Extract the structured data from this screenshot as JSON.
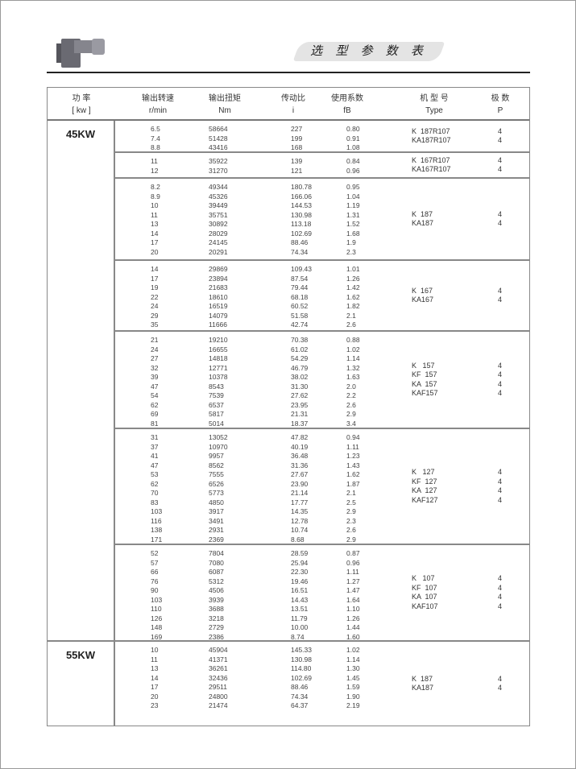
{
  "header": {
    "title": "选 型 参 数 表"
  },
  "columns": [
    {
      "cn": "功  率",
      "unit": "[ kw ]"
    },
    {
      "cn": "输出转速",
      "unit": "r/min"
    },
    {
      "cn": "输出扭矩",
      "unit": "Nm"
    },
    {
      "cn": "传动比",
      "unit": "i"
    },
    {
      "cn": "使用系数",
      "unit": "fB"
    },
    {
      "cn": "机 型 号",
      "unit": "Type"
    },
    {
      "cn": "极  数",
      "unit": "P"
    }
  ],
  "blocks": [
    {
      "power": "45KW",
      "groups": [
        {
          "rows": [
            [
              "6.5",
              "58664",
              "227",
              "0.80"
            ],
            [
              "7.4",
              "51428",
              "199",
              "0.91"
            ],
            [
              "8.8",
              "43416",
              "168",
              "1.08"
            ]
          ],
          "types": [
            [
              "K  187R107",
              "4"
            ],
            [
              "KA187R107",
              "4"
            ]
          ]
        },
        {
          "rows": [
            [
              "11",
              "35922",
              "139",
              "0.84"
            ],
            [
              "12",
              "31270",
              "121",
              "0.96"
            ]
          ],
          "types": [
            [
              "K  167R107",
              "4"
            ],
            [
              "KA167R107",
              "4"
            ]
          ]
        },
        {
          "rows": [
            [
              "8.2",
              "49344",
              "180.78",
              "0.95"
            ],
            [
              "8.9",
              "45326",
              "166.06",
              "1.04"
            ],
            [
              "10",
              "39449",
              "144.53",
              "1.19"
            ],
            [
              "11",
              "35751",
              "130.98",
              "1.31"
            ],
            [
              "13",
              "30892",
              "113.18",
              "1.52"
            ],
            [
              "14",
              "28029",
              "102.69",
              "1.68"
            ],
            [
              "17",
              "24145",
              "88.46",
              "1.9"
            ],
            [
              "20",
              "20291",
              "74.34",
              "2.3"
            ]
          ],
          "types": [
            [
              "K  187",
              "4"
            ],
            [
              "KA187",
              "4"
            ]
          ]
        },
        {
          "rows": [
            [
              "14",
              "29869",
              "109.43",
              "1.01"
            ],
            [
              "17",
              "23894",
              "87.54",
              "1.26"
            ],
            [
              "19",
              "21683",
              "79.44",
              "1.42"
            ],
            [
              "22",
              "18610",
              "68.18",
              "1.62"
            ],
            [
              "24",
              "16519",
              "60.52",
              "1.82"
            ],
            [
              "29",
              "14079",
              "51.58",
              "2.1"
            ],
            [
              "35",
              "11666",
              "42.74",
              "2.6"
            ]
          ],
          "types": [
            [
              "K  167",
              "4"
            ],
            [
              "KA167",
              "4"
            ]
          ]
        },
        {
          "rows": [
            [
              "21",
              "19210",
              "70.38",
              "0.88"
            ],
            [
              "24",
              "16655",
              "61.02",
              "1.02"
            ],
            [
              "27",
              "14818",
              "54.29",
              "1.14"
            ],
            [
              "32",
              "12771",
              "46.79",
              "1.32"
            ],
            [
              "39",
              "10378",
              "38.02",
              "1.63"
            ],
            [
              "47",
              "8543",
              "31.30",
              "2.0"
            ],
            [
              "54",
              "7539",
              "27.62",
              "2.2"
            ],
            [
              "62",
              "6537",
              "23.95",
              "2.6"
            ],
            [
              "69",
              "5817",
              "21.31",
              "2.9"
            ],
            [
              "81",
              "5014",
              "18.37",
              "3.4"
            ]
          ],
          "types": [
            [
              "K   157",
              "4"
            ],
            [
              "KF  157",
              "4"
            ],
            [
              "KA  157",
              "4"
            ],
            [
              "KAF157",
              "4"
            ]
          ]
        },
        {
          "rows": [
            [
              "31",
              "13052",
              "47.82",
              "0.94"
            ],
            [
              "37",
              "10970",
              "40.19",
              "1.11"
            ],
            [
              "41",
              "9957",
              "36.48",
              "1.23"
            ],
            [
              "47",
              "8562",
              "31.36",
              "1.43"
            ],
            [
              "53",
              "7555",
              "27.67",
              "1.62"
            ],
            [
              "62",
              "6526",
              "23.90",
              "1.87"
            ],
            [
              "70",
              "5773",
              "21.14",
              "2.1"
            ],
            [
              "83",
              "4850",
              "17.77",
              "2.5"
            ],
            [
              "103",
              "3917",
              "14.35",
              "2.9"
            ],
            [
              "116",
              "3491",
              "12.78",
              "2.3"
            ],
            [
              "138",
              "2931",
              "10.74",
              "2.6"
            ],
            [
              "171",
              "2369",
              "8.68",
              "2.9"
            ]
          ],
          "types": [
            [
              "K   127",
              "4"
            ],
            [
              "KF  127",
              "4"
            ],
            [
              "KA  127",
              "4"
            ],
            [
              "KAF127",
              "4"
            ]
          ]
        },
        {
          "rows": [
            [
              "52",
              "7804",
              "28.59",
              "0.87"
            ],
            [
              "57",
              "7080",
              "25.94",
              "0.96"
            ],
            [
              "66",
              "6087",
              "22.30",
              "1.11"
            ],
            [
              "76",
              "5312",
              "19.46",
              "1.27"
            ],
            [
              "90",
              "4506",
              "16.51",
              "1.47"
            ],
            [
              "103",
              "3939",
              "14.43",
              "1.64"
            ],
            [
              "110",
              "3688",
              "13.51",
              "1.10"
            ],
            [
              "126",
              "3218",
              "11.79",
              "1.26"
            ],
            [
              "148",
              "2729",
              "10.00",
              "1.44"
            ],
            [
              "169",
              "2386",
              "8.74",
              "1.60"
            ]
          ],
          "types": [
            [
              "K   107",
              "4"
            ],
            [
              "KF  107",
              "4"
            ],
            [
              "KA  107",
              "4"
            ],
            [
              "KAF107",
              "4"
            ]
          ]
        }
      ]
    },
    {
      "power": "55KW",
      "groups": [
        {
          "rows": [
            [
              "10",
              "45904",
              "145.33",
              "1.02"
            ],
            [
              "11",
              "41371",
              "130.98",
              "1.14"
            ],
            [
              "13",
              "36261",
              "114.80",
              "1.30"
            ],
            [
              "14",
              "32436",
              "102.69",
              "1.45"
            ],
            [
              "17",
              "29511",
              "88.46",
              "1.59"
            ],
            [
              "20",
              "24800",
              "74.34",
              "1.90"
            ],
            [
              "23",
              "21474",
              "64.37",
              "2.19"
            ]
          ],
          "types": [
            [
              "K  187",
              "4"
            ],
            [
              "KA187",
              "4"
            ]
          ]
        }
      ]
    }
  ]
}
